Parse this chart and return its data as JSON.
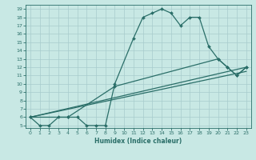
{
  "xlabel": "Humidex (Indice chaleur)",
  "bg_color": "#c8e8e4",
  "grid_color": "#a8cccc",
  "line_color": "#2a6e68",
  "xlim": [
    -0.5,
    23.5
  ],
  "ylim": [
    4.7,
    19.5
  ],
  "xticks": [
    0,
    1,
    2,
    3,
    4,
    5,
    6,
    7,
    8,
    9,
    10,
    11,
    12,
    13,
    14,
    15,
    16,
    17,
    18,
    19,
    20,
    21,
    22,
    23
  ],
  "yticks": [
    5,
    6,
    7,
    8,
    9,
    10,
    11,
    12,
    13,
    14,
    15,
    16,
    17,
    18,
    19
  ],
  "line1_x": [
    0,
    1,
    2,
    3,
    4,
    5,
    6,
    7,
    8,
    9,
    11,
    12,
    13,
    14,
    15,
    16,
    17,
    18,
    19,
    20,
    21,
    22,
    23
  ],
  "line1_y": [
    6,
    5,
    5,
    6,
    6,
    6,
    5,
    5,
    5,
    10,
    15.5,
    18,
    18.5,
    19,
    18.5,
    17,
    18,
    18,
    14.5,
    13,
    12,
    11,
    12
  ],
  "line2_x": [
    0,
    4,
    9,
    20,
    21,
    22,
    23
  ],
  "line2_y": [
    6,
    6,
    9.7,
    13,
    12,
    11,
    12
  ],
  "line3_x": [
    0,
    23
  ],
  "line3_y": [
    6,
    12
  ],
  "line4_x": [
    0,
    23
  ],
  "line4_y": [
    6,
    11.5
  ]
}
